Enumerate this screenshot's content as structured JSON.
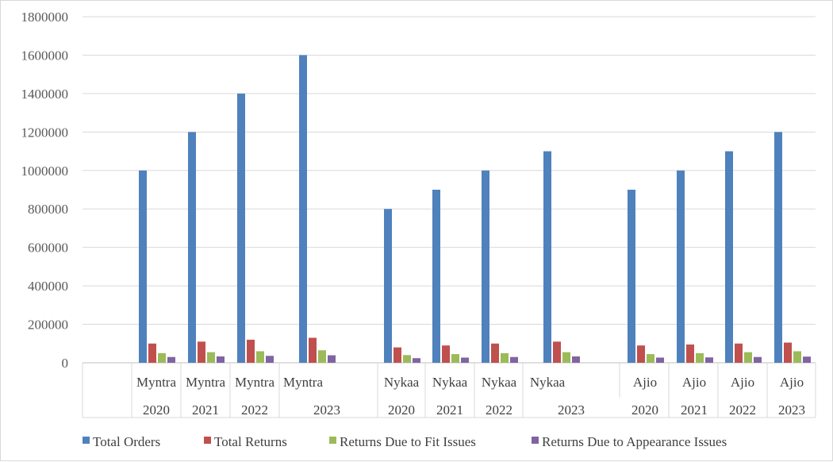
{
  "chart_data": {
    "type": "bar",
    "title": "",
    "xlabel": "",
    "ylabel": "",
    "ylim": [
      0,
      1800000
    ],
    "yticks": [
      0,
      200000,
      400000,
      600000,
      800000,
      1000000,
      1200000,
      1400000,
      1600000,
      1800000
    ],
    "grid": true,
    "legend_position": "bottom",
    "categories": [
      {
        "company": "Myntra",
        "year": "2020"
      },
      {
        "company": "Myntra",
        "year": "2021"
      },
      {
        "company": "Myntra",
        "year": "2022"
      },
      {
        "company": "Myntra",
        "year": "2023"
      },
      {
        "company": "Nykaa",
        "year": "2020"
      },
      {
        "company": "Nykaa",
        "year": "2021"
      },
      {
        "company": "Nykaa",
        "year": "2022"
      },
      {
        "company": "Nykaa",
        "year": "2023"
      },
      {
        "company": "Ajio",
        "year": "2020"
      },
      {
        "company": "Ajio",
        "year": "2021"
      },
      {
        "company": "Ajio",
        "year": "2022"
      },
      {
        "company": "Ajio",
        "year": "2023"
      }
    ],
    "series": [
      {
        "name": "Total Orders",
        "color": "#4f81bd",
        "values": [
          1000000,
          1200000,
          1400000,
          1600000,
          800000,
          900000,
          1000000,
          1100000,
          900000,
          1000000,
          1100000,
          1200000
        ]
      },
      {
        "name": "Total Returns",
        "color": "#c0504d",
        "values": [
          100000,
          110000,
          120000,
          130000,
          80000,
          90000,
          100000,
          110000,
          90000,
          95000,
          100000,
          105000
        ]
      },
      {
        "name": "Returns Due to Fit Issues",
        "color": "#9bbb59",
        "values": [
          50000,
          55000,
          60000,
          65000,
          40000,
          45000,
          50000,
          55000,
          45000,
          50000,
          55000,
          60000
        ]
      },
      {
        "name": "Returns Due to Appearance Issues",
        "color": "#8064a2",
        "values": [
          30000,
          33000,
          36000,
          39000,
          24000,
          27000,
          30000,
          33000,
          27000,
          28000,
          30000,
          32000
        ]
      }
    ]
  }
}
